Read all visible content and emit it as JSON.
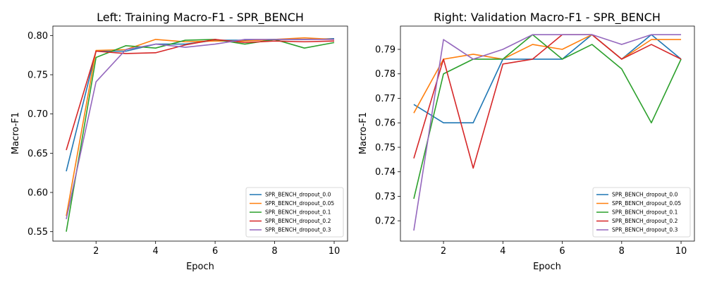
{
  "colors": [
    "#1f77b4",
    "#ff7f0e",
    "#2ca02c",
    "#d62728",
    "#9467bd"
  ],
  "chart_data": [
    {
      "type": "line",
      "title": "Left: Training Macro-F1 - SPR_BENCH",
      "xlabel": "Epoch",
      "ylabel": "Macro-F1",
      "xlim": [
        0.55,
        10.45
      ],
      "ylim": [
        0.538,
        0.812
      ],
      "xticks": [
        2,
        4,
        6,
        8,
        10
      ],
      "yticks": [
        0.55,
        0.6,
        0.65,
        0.7,
        0.75,
        0.8
      ],
      "ytick_labels": [
        "0.55",
        "0.60",
        "0.65",
        "0.70",
        "0.75",
        "0.80"
      ],
      "legend_position": "lower-right",
      "x": [
        1,
        2,
        3,
        4,
        5,
        6,
        7,
        8,
        9,
        10
      ],
      "series": [
        {
          "name": "SPR_BENCH_dropout_0.0",
          "values": [
            0.627,
            0.78,
            0.78,
            0.789,
            0.789,
            0.794,
            0.794,
            0.795,
            0.795,
            0.796
          ]
        },
        {
          "name": "SPR_BENCH_dropout_0.05",
          "values": [
            0.57,
            0.781,
            0.782,
            0.795,
            0.792,
            0.793,
            0.793,
            0.795,
            0.797,
            0.795
          ]
        },
        {
          "name": "SPR_BENCH_dropout_0.1",
          "values": [
            0.55,
            0.772,
            0.787,
            0.784,
            0.794,
            0.795,
            0.789,
            0.795,
            0.784,
            0.791
          ]
        },
        {
          "name": "SPR_BENCH_dropout_0.2",
          "values": [
            0.654,
            0.78,
            0.777,
            0.778,
            0.788,
            0.795,
            0.791,
            0.793,
            0.792,
            0.793
          ]
        },
        {
          "name": "SPR_BENCH_dropout_0.3",
          "values": [
            0.566,
            0.741,
            0.782,
            0.789,
            0.785,
            0.789,
            0.795,
            0.795,
            0.795,
            0.795
          ]
        }
      ]
    },
    {
      "type": "line",
      "title": "Right: Validation Macro-F1 - SPR_BENCH",
      "xlabel": "Epoch",
      "ylabel": "Macro-F1",
      "xlim": [
        0.55,
        10.45
      ],
      "ylim": [
        0.7117,
        0.7995
      ],
      "xticks": [
        2,
        4,
        6,
        8,
        10
      ],
      "yticks": [
        0.72,
        0.73,
        0.74,
        0.75,
        0.76,
        0.77,
        0.78,
        0.79
      ],
      "ytick_labels": [
        "0.72",
        "0.73",
        "0.74",
        "0.75",
        "0.76",
        "0.77",
        "0.78",
        "0.79"
      ],
      "legend_position": "lower-right",
      "x": [
        1,
        2,
        3,
        4,
        5,
        6,
        7,
        8,
        9,
        10
      ],
      "series": [
        {
          "name": "SPR_BENCH_dropout_0.0",
          "values": [
            0.7675,
            0.76,
            0.76,
            0.786,
            0.786,
            0.786,
            0.796,
            0.786,
            0.796,
            0.786
          ]
        },
        {
          "name": "SPR_BENCH_dropout_0.05",
          "values": [
            0.764,
            0.786,
            0.788,
            0.786,
            0.792,
            0.79,
            0.796,
            0.786,
            0.794,
            0.794
          ]
        },
        {
          "name": "SPR_BENCH_dropout_0.1",
          "values": [
            0.729,
            0.78,
            0.786,
            0.786,
            0.796,
            0.786,
            0.792,
            0.782,
            0.76,
            0.786
          ]
        },
        {
          "name": "SPR_BENCH_dropout_0.2",
          "values": [
            0.7455,
            0.786,
            0.7415,
            0.784,
            0.786,
            0.796,
            0.796,
            0.786,
            0.792,
            0.786
          ]
        },
        {
          "name": "SPR_BENCH_dropout_0.3",
          "values": [
            0.716,
            0.794,
            0.786,
            0.79,
            0.796,
            0.796,
            0.796,
            0.792,
            0.796,
            0.796
          ]
        }
      ]
    }
  ]
}
